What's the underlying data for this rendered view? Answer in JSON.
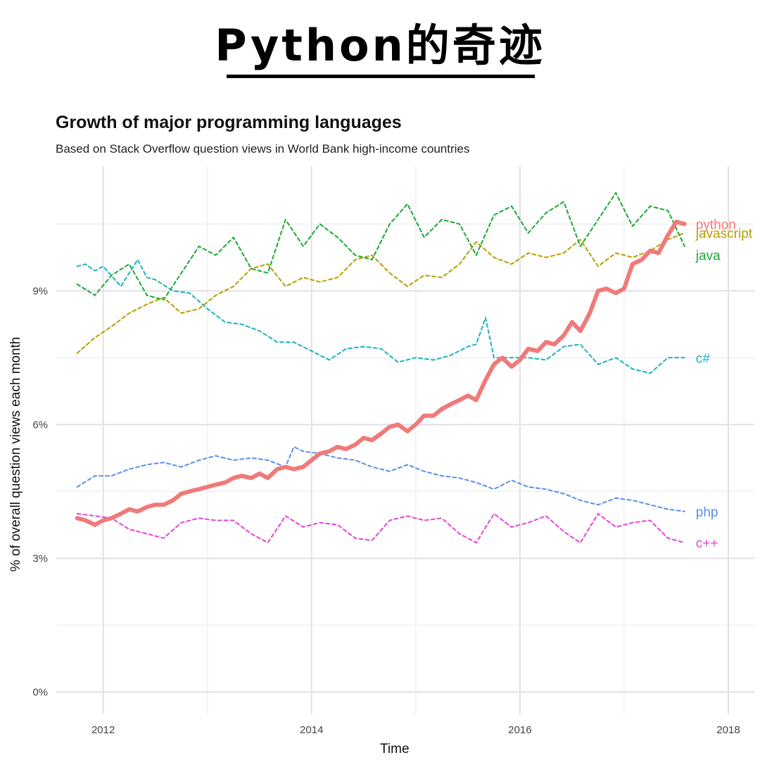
{
  "header": {
    "title": "Python的奇迹"
  },
  "chart_data": {
    "type": "line",
    "title": "Growth of major programming languages",
    "subtitle": "Based on Stack Overflow question views in World Bank high-income countries",
    "xlabel": "Time",
    "ylabel": "% of overall question views each month",
    "xlim": [
      2011.55,
      2018.25
    ],
    "ylim": [
      -0.5,
      11.8
    ],
    "x_ticks": [
      2012,
      2014,
      2016,
      2018
    ],
    "x_tick_labels": [
      "2012",
      "2014",
      "2016",
      "2018"
    ],
    "y_ticks": [
      0,
      3,
      6,
      9
    ],
    "y_tick_labels": [
      "0%",
      "3%",
      "6%",
      "9%"
    ],
    "grid": true,
    "legend": "direct labels at line ends (right)",
    "series": [
      {
        "name": "python",
        "color": "#f07a79",
        "style": "solid",
        "x": [
          2011.75,
          2011.83,
          2011.92,
          2012.0,
          2012.08,
          2012.17,
          2012.25,
          2012.33,
          2012.42,
          2012.5,
          2012.58,
          2012.67,
          2012.75,
          2012.83,
          2012.92,
          2013.0,
          2013.08,
          2013.17,
          2013.25,
          2013.33,
          2013.42,
          2013.5,
          2013.58,
          2013.67,
          2013.75,
          2013.83,
          2013.92,
          2014.0,
          2014.08,
          2014.17,
          2014.25,
          2014.33,
          2014.42,
          2014.5,
          2014.58,
          2014.67,
          2014.75,
          2014.83,
          2014.92,
          2015.0,
          2015.08,
          2015.17,
          2015.25,
          2015.33,
          2015.42,
          2015.5,
          2015.58,
          2015.67,
          2015.75,
          2015.83,
          2015.92,
          2016.0,
          2016.08,
          2016.17,
          2016.25,
          2016.33,
          2016.42,
          2016.5,
          2016.58,
          2016.67,
          2016.75,
          2016.83,
          2016.92,
          2017.0,
          2017.08,
          2017.17,
          2017.25,
          2017.33,
          2017.42,
          2017.5,
          2017.58
        ],
        "values": [
          3.9,
          3.85,
          3.75,
          3.85,
          3.9,
          4.0,
          4.1,
          4.05,
          4.15,
          4.2,
          4.2,
          4.3,
          4.45,
          4.5,
          4.55,
          4.6,
          4.65,
          4.7,
          4.8,
          4.85,
          4.8,
          4.9,
          4.8,
          5.0,
          5.05,
          5.0,
          5.05,
          5.2,
          5.35,
          5.4,
          5.5,
          5.45,
          5.55,
          5.7,
          5.65,
          5.8,
          5.95,
          6.0,
          5.85,
          6.0,
          6.2,
          6.2,
          6.35,
          6.45,
          6.55,
          6.65,
          6.55,
          7.0,
          7.35,
          7.5,
          7.3,
          7.45,
          7.7,
          7.65,
          7.85,
          7.8,
          8.0,
          8.3,
          8.1,
          8.5,
          9.0,
          9.05,
          8.95,
          9.05,
          9.6,
          9.7,
          9.9,
          9.85,
          10.25,
          10.55,
          10.5
        ]
      },
      {
        "name": "javascript",
        "color": "#b79f00",
        "style": "dashed",
        "x": [
          2011.75,
          2011.92,
          2012.08,
          2012.25,
          2012.42,
          2012.58,
          2012.75,
          2012.92,
          2013.08,
          2013.25,
          2013.42,
          2013.58,
          2013.75,
          2013.92,
          2014.08,
          2014.25,
          2014.42,
          2014.58,
          2014.75,
          2014.92,
          2015.08,
          2015.25,
          2015.42,
          2015.58,
          2015.75,
          2015.92,
          2016.08,
          2016.25,
          2016.42,
          2016.58,
          2016.75,
          2016.92,
          2017.08,
          2017.25,
          2017.42,
          2017.58
        ],
        "values": [
          7.6,
          7.95,
          8.2,
          8.5,
          8.7,
          8.85,
          8.5,
          8.6,
          8.9,
          9.1,
          9.5,
          9.6,
          9.1,
          9.3,
          9.2,
          9.3,
          9.7,
          9.8,
          9.4,
          9.1,
          9.35,
          9.3,
          9.6,
          10.1,
          9.75,
          9.6,
          9.85,
          9.75,
          9.85,
          10.15,
          9.55,
          9.85,
          9.75,
          9.9,
          10.15,
          10.3
        ]
      },
      {
        "name": "java",
        "color": "#1aa834",
        "style": "dashed",
        "x": [
          2011.75,
          2011.92,
          2012.08,
          2012.25,
          2012.42,
          2012.58,
          2012.75,
          2012.92,
          2013.08,
          2013.25,
          2013.42,
          2013.58,
          2013.75,
          2013.92,
          2014.08,
          2014.25,
          2014.42,
          2014.58,
          2014.75,
          2014.92,
          2015.08,
          2015.25,
          2015.42,
          2015.58,
          2015.75,
          2015.92,
          2016.08,
          2016.25,
          2016.42,
          2016.58,
          2016.75,
          2016.92,
          2017.08,
          2017.25,
          2017.42,
          2017.58
        ],
        "values": [
          9.15,
          8.9,
          9.35,
          9.6,
          8.9,
          8.8,
          9.4,
          10.0,
          9.8,
          10.2,
          9.5,
          9.4,
          10.6,
          10.0,
          10.5,
          10.2,
          9.8,
          9.7,
          10.5,
          10.95,
          10.2,
          10.6,
          10.5,
          9.8,
          10.7,
          10.9,
          10.3,
          10.75,
          11.0,
          10.0,
          10.6,
          11.2,
          10.45,
          10.9,
          10.8,
          10.0
        ]
      },
      {
        "name": "c#",
        "color": "#1db3bd",
        "style": "dashed",
        "x": [
          2011.75,
          2011.83,
          2011.92,
          2012.0,
          2012.17,
          2012.33,
          2012.42,
          2012.5,
          2012.67,
          2012.83,
          2013.0,
          2013.17,
          2013.33,
          2013.5,
          2013.67,
          2013.83,
          2014.0,
          2014.17,
          2014.33,
          2014.5,
          2014.67,
          2014.83,
          2015.0,
          2015.17,
          2015.33,
          2015.5,
          2015.58,
          2015.67,
          2015.75,
          2015.92,
          2016.08,
          2016.25,
          2016.42,
          2016.58,
          2016.75,
          2016.92,
          2017.08,
          2017.25,
          2017.42,
          2017.58
        ],
        "values": [
          9.55,
          9.6,
          9.45,
          9.55,
          9.1,
          9.7,
          9.3,
          9.25,
          9.0,
          8.95,
          8.6,
          8.3,
          8.25,
          8.1,
          7.85,
          7.85,
          7.65,
          7.45,
          7.7,
          7.75,
          7.7,
          7.4,
          7.5,
          7.45,
          7.55,
          7.75,
          7.8,
          8.4,
          7.5,
          7.5,
          7.5,
          7.45,
          7.75,
          7.8,
          7.35,
          7.5,
          7.25,
          7.15,
          7.5,
          7.5
        ]
      },
      {
        "name": "php",
        "color": "#5b8ee6",
        "style": "dashed",
        "x": [
          2011.75,
          2011.92,
          2012.08,
          2012.25,
          2012.42,
          2012.58,
          2012.75,
          2012.92,
          2013.08,
          2013.25,
          2013.42,
          2013.58,
          2013.75,
          2013.83,
          2013.92,
          2014.08,
          2014.25,
          2014.42,
          2014.58,
          2014.75,
          2014.92,
          2015.08,
          2015.25,
          2015.42,
          2015.58,
          2015.75,
          2015.92,
          2016.08,
          2016.25,
          2016.42,
          2016.58,
          2016.75,
          2016.92,
          2017.08,
          2017.25,
          2017.42,
          2017.58
        ],
        "values": [
          4.6,
          4.85,
          4.85,
          5.0,
          5.1,
          5.15,
          5.05,
          5.2,
          5.3,
          5.2,
          5.25,
          5.2,
          5.05,
          5.5,
          5.4,
          5.35,
          5.25,
          5.2,
          5.05,
          4.95,
          5.1,
          4.95,
          4.85,
          4.8,
          4.7,
          4.55,
          4.75,
          4.6,
          4.55,
          4.45,
          4.3,
          4.2,
          4.35,
          4.3,
          4.2,
          4.1,
          4.05
        ]
      },
      {
        "name": "c++",
        "color": "#e645d6",
        "style": "dashed",
        "x": [
          2011.75,
          2011.92,
          2012.08,
          2012.25,
          2012.42,
          2012.58,
          2012.75,
          2012.92,
          2013.08,
          2013.25,
          2013.42,
          2013.58,
          2013.75,
          2013.92,
          2014.08,
          2014.25,
          2014.42,
          2014.58,
          2014.75,
          2014.92,
          2015.08,
          2015.25,
          2015.42,
          2015.58,
          2015.75,
          2015.92,
          2016.08,
          2016.25,
          2016.42,
          2016.58,
          2016.75,
          2016.92,
          2017.08,
          2017.25,
          2017.42,
          2017.58
        ],
        "values": [
          4.0,
          3.95,
          3.9,
          3.65,
          3.55,
          3.45,
          3.8,
          3.9,
          3.85,
          3.85,
          3.55,
          3.35,
          3.95,
          3.7,
          3.8,
          3.75,
          3.45,
          3.4,
          3.85,
          3.95,
          3.85,
          3.9,
          3.55,
          3.35,
          4.0,
          3.7,
          3.8,
          3.95,
          3.6,
          3.35,
          4.0,
          3.7,
          3.8,
          3.85,
          3.45,
          3.35
        ]
      }
    ],
    "series_labels": [
      {
        "series": "python",
        "text": "python",
        "y": 10.5
      },
      {
        "series": "javascript",
        "text": "javascript",
        "y": 10.3
      },
      {
        "series": "java",
        "text": "java",
        "y": 9.8
      },
      {
        "series": "c#",
        "text": "c#",
        "y": 7.5
      },
      {
        "series": "php",
        "text": "php",
        "y": 4.05
      },
      {
        "series": "c++",
        "text": "c++",
        "y": 3.35
      }
    ]
  }
}
